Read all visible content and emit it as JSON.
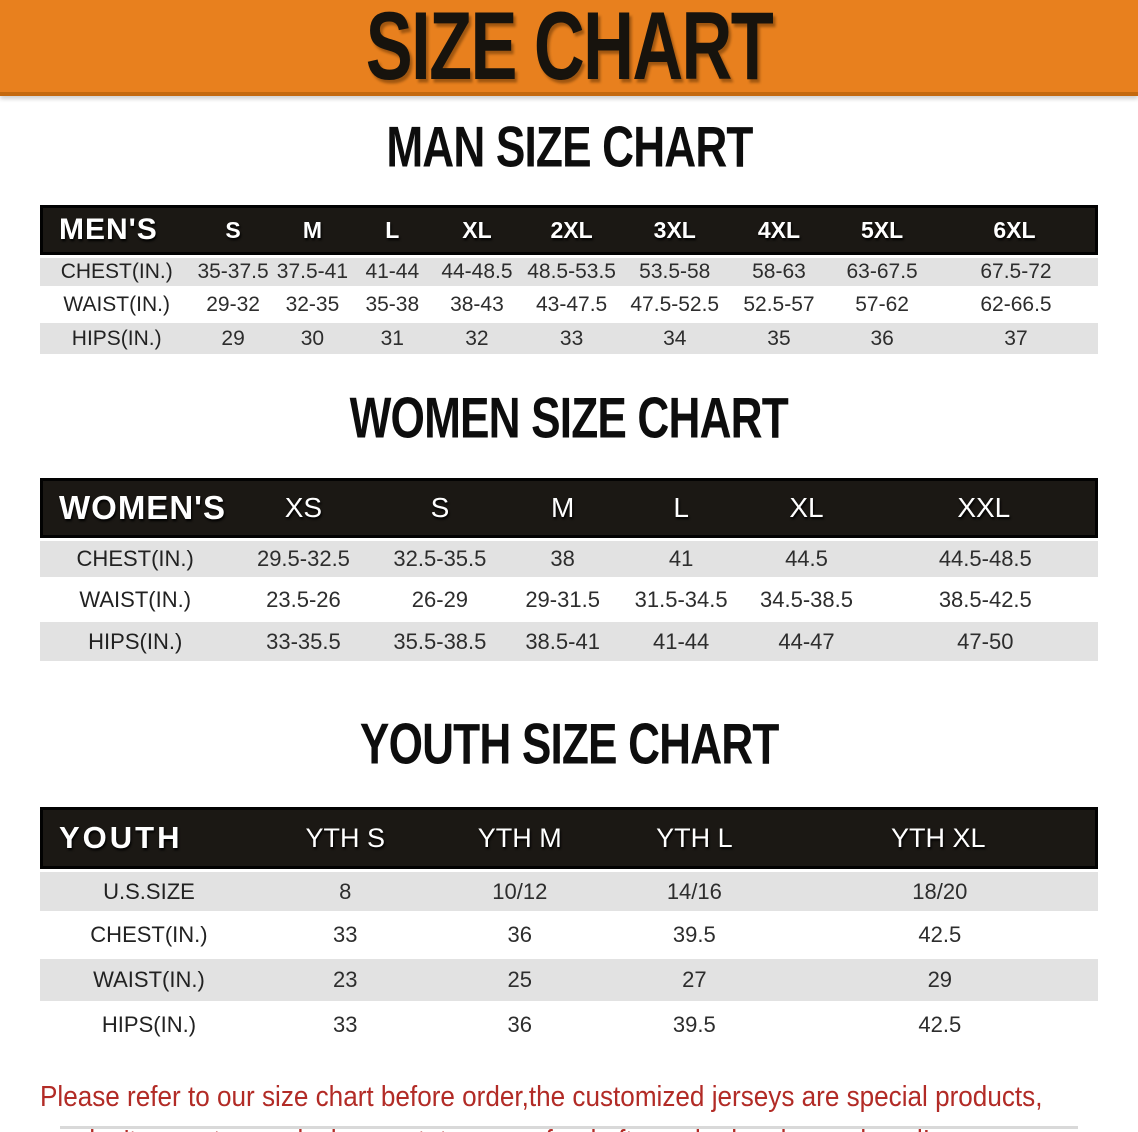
{
  "banner": {
    "title": "SIZE CHART"
  },
  "chart_data": [
    {
      "type": "table",
      "title": "MAN SIZE CHART",
      "group_label": "MEN'S",
      "columns": [
        "S",
        "M",
        "L",
        "XL",
        "2XL",
        "3XL",
        "4XL",
        "5XL",
        "6XL"
      ],
      "rows": [
        {
          "label": "CHEST(IN.)",
          "values": [
            "35-37.5",
            "37.5-41",
            "41-44",
            "44-48.5",
            "48.5-53.5",
            "53.5-58",
            "58-63",
            "63-67.5",
            "67.5-72"
          ]
        },
        {
          "label": "WAIST(IN.)",
          "values": [
            "29-32",
            "32-35",
            "35-38",
            "38-43",
            "43-47.5",
            "47.5-52.5",
            "52.5-57",
            "57-62",
            "62-66.5"
          ]
        },
        {
          "label": "HIPS(IN.)",
          "values": [
            "29",
            "30",
            "31",
            "32",
            "33",
            "34",
            "35",
            "36",
            "37"
          ]
        }
      ]
    },
    {
      "type": "table",
      "title": "WOMEN SIZE CHART",
      "group_label": "WOMEN'S",
      "columns": [
        "XS",
        "S",
        "M",
        "L",
        "XL",
        "XXL"
      ],
      "rows": [
        {
          "label": "CHEST(IN.)",
          "values": [
            "29.5-32.5",
            "32.5-35.5",
            "38",
            "41",
            "44.5",
            "44.5-48.5"
          ]
        },
        {
          "label": "WAIST(IN.)",
          "values": [
            "23.5-26",
            "26-29",
            "29-31.5",
            "31.5-34.5",
            "34.5-38.5",
            "38.5-42.5"
          ]
        },
        {
          "label": "HIPS(IN.)",
          "values": [
            "33-35.5",
            "35.5-38.5",
            "38.5-41",
            "41-44",
            "44-47",
            "47-50"
          ]
        }
      ]
    },
    {
      "type": "table",
      "title": "YOUTH SIZE CHART",
      "group_label": "YOUTH",
      "columns": [
        "YTH S",
        "YTH M",
        "YTH L",
        "YTH XL"
      ],
      "rows": [
        {
          "label": "U.S.SIZE",
          "values": [
            "8",
            "10/12",
            "14/16",
            "18/20"
          ]
        },
        {
          "label": "CHEST(IN.)",
          "values": [
            "33",
            "36",
            "39.5",
            "42.5"
          ]
        },
        {
          "label": "WAIST(IN.)",
          "values": [
            "23",
            "25",
            "27",
            "29"
          ]
        },
        {
          "label": "HIPS(IN.)",
          "values": [
            "33",
            "36",
            "39.5",
            "42.5"
          ]
        }
      ]
    }
  ],
  "disclaimer": {
    "line1": "Please refer to our size chart before order,the customized jerseys are special products,",
    "line2": "we don't accept cancel, change, teturn or refund after order has been placed!"
  },
  "colors": {
    "banner_orange": "#E8801E",
    "table_header_black": "#1B1814",
    "row_gray": "#E2E2E2",
    "disclaimer_red": "#B22B26",
    "heading_black": "#0D0D0D"
  }
}
